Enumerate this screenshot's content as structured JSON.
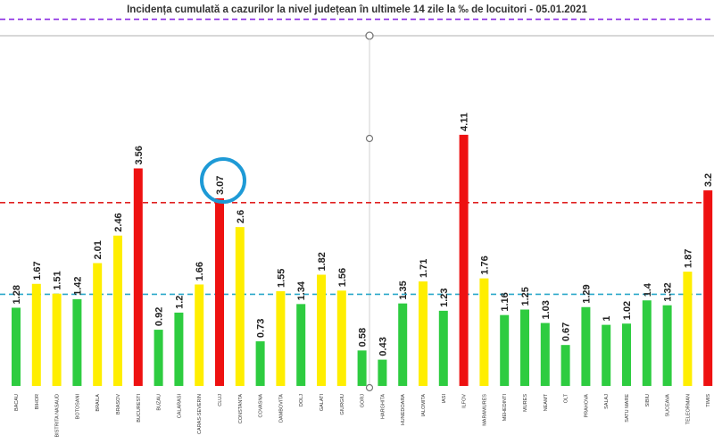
{
  "chart_data": {
    "type": "bar",
    "title": "Incidența cumulată a cazurilor la nivel județean în ultimele 14 zile la ‰ de locuitori - 05.01.2021",
    "categories": [
      "BACAU",
      "BIHOR",
      "BISTRITA NASAUD",
      "BOTOSANI",
      "BRAILA",
      "BRASOV",
      "BUCURESTI",
      "BUZAU",
      "CALARASI",
      "CARAS-SEVERIN",
      "CLUJ",
      "CONSTANTA",
      "COVASNA",
      "DAMBOVITA",
      "DOLJ",
      "GALATI",
      "GIURGIU",
      "GORJ",
      "HARGHITA",
      "HUNEDOARA",
      "IALOMITA",
      "IASI",
      "ILFOV",
      "MARAMURES",
      "MEHEDINTI",
      "MURES",
      "NEAMT",
      "OLT",
      "PRAHOVA",
      "SALAJ",
      "SATU MARE",
      "SIBIU",
      "SUCEAVA",
      "TELEORMAN",
      "TIMIS"
    ],
    "values": [
      1.28,
      1.67,
      1.51,
      1.42,
      2.01,
      2.46,
      3.56,
      0.92,
      1.2,
      1.66,
      3.07,
      2.6,
      0.73,
      1.55,
      1.34,
      1.82,
      1.56,
      0.58,
      0.43,
      1.35,
      1.71,
      1.23,
      4.11,
      1.76,
      1.16,
      1.25,
      1.03,
      0.67,
      1.29,
      1,
      1.02,
      1.4,
      1.32,
      1.87,
      3.2
    ],
    "value_labels": [
      "1.28",
      "1.67",
      "1.51",
      "1.42",
      "2.01",
      "2.46",
      "3.56",
      "0.92",
      "1.2",
      "1.66",
      "3.07",
      "2.6",
      "0.73",
      "1.55",
      "1.34",
      "1.82",
      "1.56",
      "0.58",
      "0.43",
      "1.35",
      "1.71",
      "1.23",
      "4.11",
      "1.76",
      "1.16",
      "1.25",
      "1.03",
      "0.67",
      "1.29",
      "1",
      "1.02",
      "1.4",
      "1.32",
      "1.87",
      "3.2"
    ],
    "thresholds": [
      {
        "value": 1.5,
        "color": "#2aa8c9",
        "style": "dashed"
      },
      {
        "value": 3.0,
        "color": "#e02020",
        "style": "dashed"
      },
      {
        "value": 6.0,
        "color": "#8a2be2",
        "style": "dashed"
      }
    ],
    "bar_colors": {
      "green": "#2ecc40",
      "yellow": "#ffee00",
      "red": "#ee1111"
    },
    "color_rule": {
      "yellow_from": 1.5,
      "red_from": 3.0
    },
    "highlighted_category": "CLUJ",
    "highlight_color": "#1e9ad6",
    "ylim": [
      0,
      6.2
    ],
    "grid": false,
    "legend": "none",
    "xlabel": "",
    "ylabel": ""
  }
}
